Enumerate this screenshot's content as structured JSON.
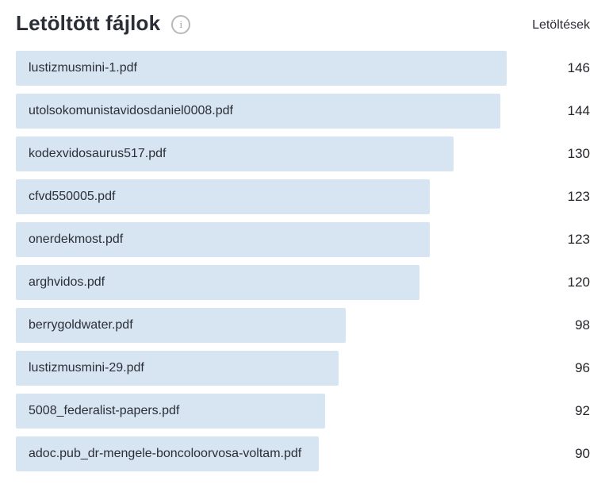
{
  "header": {
    "title": "Letöltött fájlok",
    "info_icon": "info-icon",
    "value_column_label": "Letöltések"
  },
  "colors": {
    "bar": "#d7e5f3",
    "text": "#2b2e37",
    "icon_gray": "#a0a0a0",
    "background": "#ffffff"
  },
  "chart_data": {
    "type": "bar",
    "orientation": "horizontal",
    "title": "Letöltött fájlok",
    "value_column_label": "Letöltések",
    "categories": [
      "lustizmusmini-1.pdf",
      "utolsokomunistavidosdaniel0008.pdf",
      "kodexvidosaurus517.pdf",
      "cfvd550005.pdf",
      "onerdekmost.pdf",
      "arghvidos.pdf",
      "berrygoldwater.pdf",
      "lustizmusmini-29.pdf",
      "5008_federalist-papers.pdf",
      "adoc.pub_dr-mengele-boncoloorvosa-voltam.pdf"
    ],
    "values": [
      146,
      144,
      130,
      123,
      123,
      120,
      98,
      96,
      92,
      90
    ],
    "xlim": [
      0,
      146
    ],
    "grid": false,
    "legend": false,
    "bar_color": "#d7e5f3"
  }
}
